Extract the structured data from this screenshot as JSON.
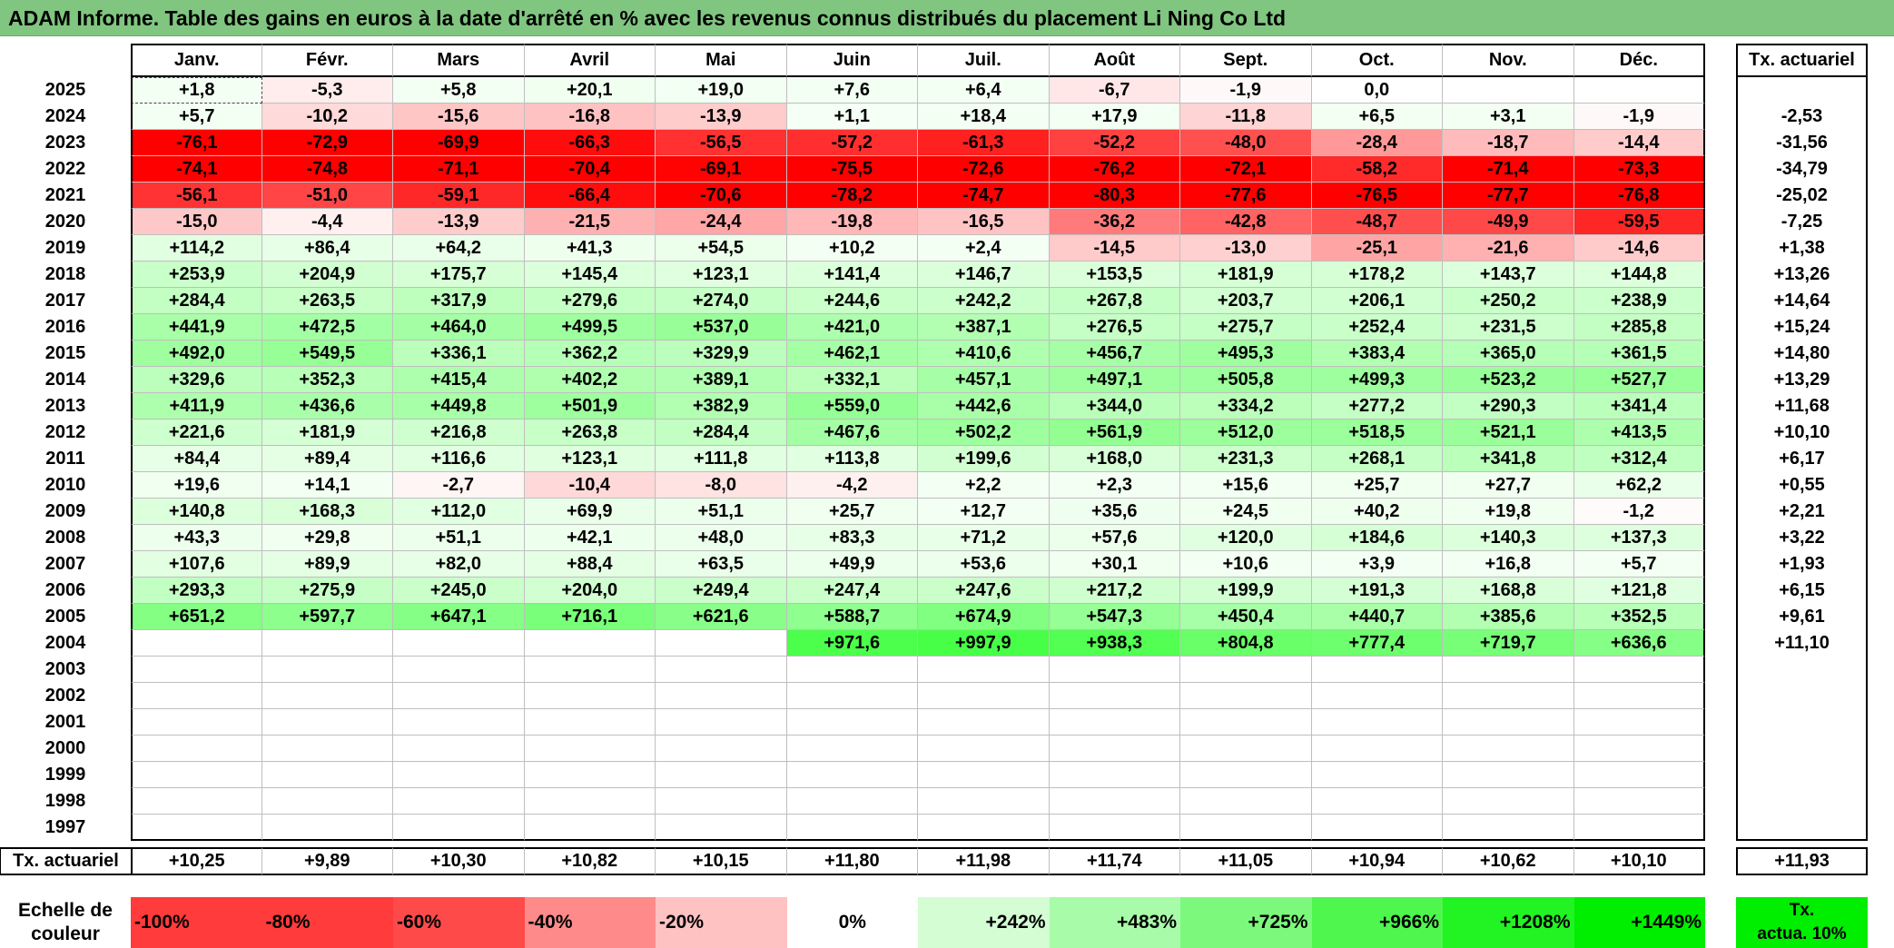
{
  "title": "ADAM Informe. Table des gains en euros à la date d'arrêté en % avec les revenus connus distribués du placement Li Ning Co Ltd",
  "months": [
    "Janv.",
    "Févr.",
    "Mars",
    "Avril",
    "Mai",
    "Juin",
    "Juil.",
    "Août",
    "Sept.",
    "Oct.",
    "Nov.",
    "Déc."
  ],
  "tx_header": "Tx. actuariel",
  "rows": [
    {
      "year": "2025",
      "values": [
        "+1,8",
        "-5,3",
        "+5,8",
        "+20,1",
        "+19,0",
        "+7,6",
        "+6,4",
        "-6,7",
        "-1,9",
        "0,0",
        "",
        ""
      ],
      "tx": ""
    },
    {
      "year": "2024",
      "values": [
        "+5,7",
        "-10,2",
        "-15,6",
        "-16,8",
        "-13,9",
        "+1,1",
        "+18,4",
        "+17,9",
        "-11,8",
        "+6,5",
        "+3,1",
        "-1,9"
      ],
      "tx": "-2,53"
    },
    {
      "year": "2023",
      "values": [
        "-76,1",
        "-72,9",
        "-69,9",
        "-66,3",
        "-56,5",
        "-57,2",
        "-61,3",
        "-52,2",
        "-48,0",
        "-28,4",
        "-18,7",
        "-14,4"
      ],
      "tx": "-31,56"
    },
    {
      "year": "2022",
      "values": [
        "-74,1",
        "-74,8",
        "-71,1",
        "-70,4",
        "-69,1",
        "-75,5",
        "-72,6",
        "-76,2",
        "-72,1",
        "-58,2",
        "-71,4",
        "-73,3"
      ],
      "tx": "-34,79"
    },
    {
      "year": "2021",
      "values": [
        "-56,1",
        "-51,0",
        "-59,1",
        "-66,4",
        "-70,6",
        "-78,2",
        "-74,7",
        "-80,3",
        "-77,6",
        "-76,5",
        "-77,7",
        "-76,8"
      ],
      "tx": "-25,02"
    },
    {
      "year": "2020",
      "values": [
        "-15,0",
        "-4,4",
        "-13,9",
        "-21,5",
        "-24,4",
        "-19,8",
        "-16,5",
        "-36,2",
        "-42,8",
        "-48,7",
        "-49,9",
        "-59,5"
      ],
      "tx": "-7,25"
    },
    {
      "year": "2019",
      "values": [
        "+114,2",
        "+86,4",
        "+64,2",
        "+41,3",
        "+54,5",
        "+10,2",
        "+2,4",
        "-14,5",
        "-13,0",
        "-25,1",
        "-21,6",
        "-14,6"
      ],
      "tx": "+1,38"
    },
    {
      "year": "2018",
      "values": [
        "+253,9",
        "+204,9",
        "+175,7",
        "+145,4",
        "+123,1",
        "+141,4",
        "+146,7",
        "+153,5",
        "+181,9",
        "+178,2",
        "+143,7",
        "+144,8"
      ],
      "tx": "+13,26"
    },
    {
      "year": "2017",
      "values": [
        "+284,4",
        "+263,5",
        "+317,9",
        "+279,6",
        "+274,0",
        "+244,6",
        "+242,2",
        "+267,8",
        "+203,7",
        "+206,1",
        "+250,2",
        "+238,9"
      ],
      "tx": "+14,64"
    },
    {
      "year": "2016",
      "values": [
        "+441,9",
        "+472,5",
        "+464,0",
        "+499,5",
        "+537,0",
        "+421,0",
        "+387,1",
        "+276,5",
        "+275,7",
        "+252,4",
        "+231,5",
        "+285,8"
      ],
      "tx": "+15,24"
    },
    {
      "year": "2015",
      "values": [
        "+492,0",
        "+549,5",
        "+336,1",
        "+362,2",
        "+329,9",
        "+462,1",
        "+410,6",
        "+456,7",
        "+495,3",
        "+383,4",
        "+365,0",
        "+361,5"
      ],
      "tx": "+14,80"
    },
    {
      "year": "2014",
      "values": [
        "+329,6",
        "+352,3",
        "+415,4",
        "+402,2",
        "+389,1",
        "+332,1",
        "+457,1",
        "+497,1",
        "+505,8",
        "+499,3",
        "+523,2",
        "+527,7"
      ],
      "tx": "+13,29"
    },
    {
      "year": "2013",
      "values": [
        "+411,9",
        "+436,6",
        "+449,8",
        "+501,9",
        "+382,9",
        "+559,0",
        "+442,6",
        "+344,0",
        "+334,2",
        "+277,2",
        "+290,3",
        "+341,4"
      ],
      "tx": "+11,68"
    },
    {
      "year": "2012",
      "values": [
        "+221,6",
        "+181,9",
        "+216,8",
        "+263,8",
        "+284,4",
        "+467,6",
        "+502,2",
        "+561,9",
        "+512,0",
        "+518,5",
        "+521,1",
        "+413,5"
      ],
      "tx": "+10,10"
    },
    {
      "year": "2011",
      "values": [
        "+84,4",
        "+89,4",
        "+116,6",
        "+123,1",
        "+111,8",
        "+113,8",
        "+199,6",
        "+168,0",
        "+231,3",
        "+268,1",
        "+341,8",
        "+312,4"
      ],
      "tx": "+6,17"
    },
    {
      "year": "2010",
      "values": [
        "+19,6",
        "+14,1",
        "-2,7",
        "-10,4",
        "-8,0",
        "-4,2",
        "+2,2",
        "+2,3",
        "+15,6",
        "+25,7",
        "+27,7",
        "+62,2"
      ],
      "tx": "+0,55"
    },
    {
      "year": "2009",
      "values": [
        "+140,8",
        "+168,3",
        "+112,0",
        "+69,9",
        "+51,1",
        "+25,7",
        "+12,7",
        "+35,6",
        "+24,5",
        "+40,2",
        "+19,8",
        "-1,2"
      ],
      "tx": "+2,21"
    },
    {
      "year": "2008",
      "values": [
        "+43,3",
        "+29,8",
        "+51,1",
        "+42,1",
        "+48,0",
        "+83,3",
        "+71,2",
        "+57,6",
        "+120,0",
        "+184,6",
        "+140,3",
        "+137,3"
      ],
      "tx": "+3,22"
    },
    {
      "year": "2007",
      "values": [
        "+107,6",
        "+89,9",
        "+82,0",
        "+88,4",
        "+63,5",
        "+49,9",
        "+53,6",
        "+30,1",
        "+10,6",
        "+3,9",
        "+16,8",
        "+5,7"
      ],
      "tx": "+1,93"
    },
    {
      "year": "2006",
      "values": [
        "+293,3",
        "+275,9",
        "+245,0",
        "+204,0",
        "+249,4",
        "+247,4",
        "+247,6",
        "+217,2",
        "+199,9",
        "+191,3",
        "+168,8",
        "+121,8"
      ],
      "tx": "+6,15"
    },
    {
      "year": "2005",
      "values": [
        "+651,2",
        "+597,7",
        "+647,1",
        "+716,1",
        "+621,6",
        "+588,7",
        "+674,9",
        "+547,3",
        "+450,4",
        "+440,7",
        "+385,6",
        "+352,5"
      ],
      "tx": "+9,61"
    },
    {
      "year": "2004",
      "values": [
        "",
        "",
        "",
        "",
        "",
        "+971,6",
        "+997,9",
        "+938,3",
        "+804,8",
        "+777,4",
        "+719,7",
        "+636,6"
      ],
      "tx": "+11,10"
    },
    {
      "year": "2003",
      "values": [
        "",
        "",
        "",
        "",
        "",
        "",
        "",
        "",
        "",
        "",
        "",
        ""
      ],
      "tx": ""
    },
    {
      "year": "2002",
      "values": [
        "",
        "",
        "",
        "",
        "",
        "",
        "",
        "",
        "",
        "",
        "",
        ""
      ],
      "tx": ""
    },
    {
      "year": "2001",
      "values": [
        "",
        "",
        "",
        "",
        "",
        "",
        "",
        "",
        "",
        "",
        "",
        ""
      ],
      "tx": ""
    },
    {
      "year": "2000",
      "values": [
        "",
        "",
        "",
        "",
        "",
        "",
        "",
        "",
        "",
        "",
        "",
        ""
      ],
      "tx": ""
    },
    {
      "year": "1999",
      "values": [
        "",
        "",
        "",
        "",
        "",
        "",
        "",
        "",
        "",
        "",
        "",
        ""
      ],
      "tx": ""
    },
    {
      "year": "1998",
      "values": [
        "",
        "",
        "",
        "",
        "",
        "",
        "",
        "",
        "",
        "",
        "",
        ""
      ],
      "tx": ""
    },
    {
      "year": "1997",
      "values": [
        "",
        "",
        "",
        "",
        "",
        "",
        "",
        "",
        "",
        "",
        "",
        ""
      ],
      "tx": ""
    }
  ],
  "footer": {
    "label": "Tx. actuariel",
    "values": [
      "+10,25",
      "+9,89",
      "+10,30",
      "+10,82",
      "+10,15",
      "+11,80",
      "+11,98",
      "+11,74",
      "+11,05",
      "+10,94",
      "+10,62",
      "+10,10"
    ],
    "total": "+11,93"
  },
  "legend": {
    "label_line1": "Echelle de",
    "label_line2": "couleur",
    "items": [
      {
        "text": "-100%",
        "color": "#ff3b3b"
      },
      {
        "text": "-80%",
        "color": "#ff3b3b"
      },
      {
        "text": "-60%",
        "color": "#ff4a4a"
      },
      {
        "text": "-40%",
        "color": "#ff8a8a"
      },
      {
        "text": "-20%",
        "color": "#ffc2c2"
      },
      {
        "text": "0%",
        "color": "#ffffff"
      },
      {
        "text": "+242%",
        "color": "#d4fdd4"
      },
      {
        "text": "+483%",
        "color": "#a8fba8"
      },
      {
        "text": "+725%",
        "color": "#7cf97c"
      },
      {
        "text": "+966%",
        "color": "#4ef64e"
      },
      {
        "text": "+1208%",
        "color": "#22f322"
      },
      {
        "text": "+1449%",
        "color": "#00ee00"
      }
    ],
    "tx_line1": "Tx.",
    "tx_line2": "actua. 10%",
    "tx_color": "#00ee00"
  }
}
